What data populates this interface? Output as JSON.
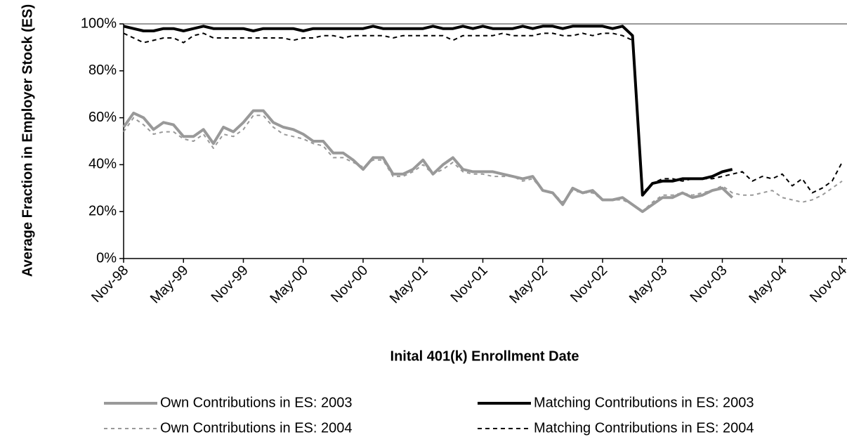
{
  "chart_data": {
    "type": "line",
    "y_axis_label": "Average Fraction in Employer Stock (ES)",
    "x_axis_label": "Inital 401(k) Enrollment Date",
    "categories": [
      "Nov-98",
      null,
      null,
      null,
      null,
      null,
      "May-99",
      null,
      null,
      null,
      null,
      null,
      "Nov-99",
      null,
      null,
      null,
      null,
      null,
      "May-00",
      null,
      null,
      null,
      null,
      null,
      "Nov-00",
      null,
      null,
      null,
      null,
      null,
      "May-01",
      null,
      null,
      null,
      null,
      null,
      "Nov-01",
      null,
      null,
      null,
      null,
      null,
      "May-02",
      null,
      null,
      null,
      null,
      null,
      "Nov-02",
      null,
      null,
      null,
      null,
      null,
      "May-03",
      null,
      null,
      null,
      null,
      null,
      "Nov-03",
      null,
      null,
      null,
      null,
      null,
      "May-04",
      null,
      null,
      null,
      null,
      null,
      "Nov-04"
    ],
    "ylim": [
      0,
      100
    ],
    "yticks": [
      {
        "value": 0,
        "label": "0%"
      },
      {
        "value": 20,
        "label": "20%"
      },
      {
        "value": 40,
        "label": "40%"
      },
      {
        "value": 60,
        "label": "60%"
      },
      {
        "value": 80,
        "label": "80%"
      },
      {
        "value": 100,
        "label": "100%"
      }
    ],
    "grid": false,
    "legend": "bottom",
    "series": [
      {
        "name": "Own Contributions in ES: 2003",
        "color": "#999999",
        "dashed": false,
        "values": [
          56,
          62,
          60,
          55,
          58,
          57,
          52,
          52,
          55,
          49,
          56,
          54,
          58,
          63,
          63,
          58,
          56,
          55,
          53,
          50,
          50,
          45,
          45,
          42,
          38,
          43,
          43,
          36,
          36,
          38,
          42,
          36,
          40,
          43,
          38,
          37,
          37,
          37,
          36,
          35,
          34,
          35,
          29,
          28,
          23,
          30,
          28,
          29,
          25,
          25,
          26,
          23,
          20,
          23,
          26,
          26,
          28,
          26,
          27,
          29,
          30,
          26,
          null,
          null,
          null,
          null,
          null,
          null,
          null,
          null,
          null,
          null,
          null
        ]
      },
      {
        "name": "Matching Contributions in ES: 2003",
        "color": "#000000",
        "dashed": false,
        "values": [
          99,
          98,
          97,
          97,
          98,
          98,
          97,
          98,
          99,
          98,
          98,
          98,
          98,
          97,
          98,
          98,
          98,
          98,
          97,
          98,
          98,
          98,
          98,
          98,
          98,
          99,
          98,
          98,
          98,
          98,
          98,
          99,
          98,
          98,
          99,
          98,
          99,
          98,
          98,
          98,
          99,
          98,
          99,
          99,
          98,
          99,
          99,
          99,
          99,
          98,
          99,
          95,
          27,
          32,
          33,
          33,
          34,
          34,
          34,
          35,
          37,
          38,
          null,
          null,
          null,
          null,
          null,
          null,
          null,
          null,
          null,
          null,
          null
        ]
      },
      {
        "name": "Own Contributions in ES: 2004",
        "color": "#999999",
        "dashed": true,
        "values": [
          54,
          60,
          57,
          53,
          54,
          54,
          51,
          50,
          53,
          47,
          53,
          52,
          55,
          61,
          61,
          56,
          53,
          52,
          51,
          49,
          48,
          43,
          43,
          41,
          39,
          42,
          42,
          35,
          35,
          37,
          40,
          36,
          38,
          41,
          37,
          36,
          36,
          35,
          35,
          35,
          33,
          34,
          29,
          28,
          24,
          29,
          28,
          28,
          25,
          25,
          25,
          23,
          20,
          24,
          27,
          27,
          28,
          27,
          28,
          29,
          31,
          28,
          27,
          27,
          28,
          29,
          26,
          25,
          24,
          25,
          27,
          30,
          33
        ]
      },
      {
        "name": "Matching Contributions in ES: 2004",
        "color": "#000000",
        "dashed": true,
        "values": [
          96,
          94,
          92,
          93,
          94,
          94,
          92,
          95,
          96,
          94,
          94,
          94,
          94,
          94,
          94,
          94,
          94,
          93,
          94,
          94,
          95,
          95,
          94,
          95,
          95,
          95,
          95,
          94,
          95,
          95,
          95,
          95,
          95,
          93,
          95,
          95,
          95,
          95,
          96,
          95,
          95,
          95,
          96,
          96,
          95,
          95,
          96,
          95,
          96,
          96,
          95,
          93,
          28,
          32,
          34,
          34,
          33,
          34,
          34,
          34,
          35,
          36,
          37,
          33,
          35,
          34,
          36,
          31,
          34,
          28,
          30,
          33,
          41
        ]
      }
    ]
  }
}
